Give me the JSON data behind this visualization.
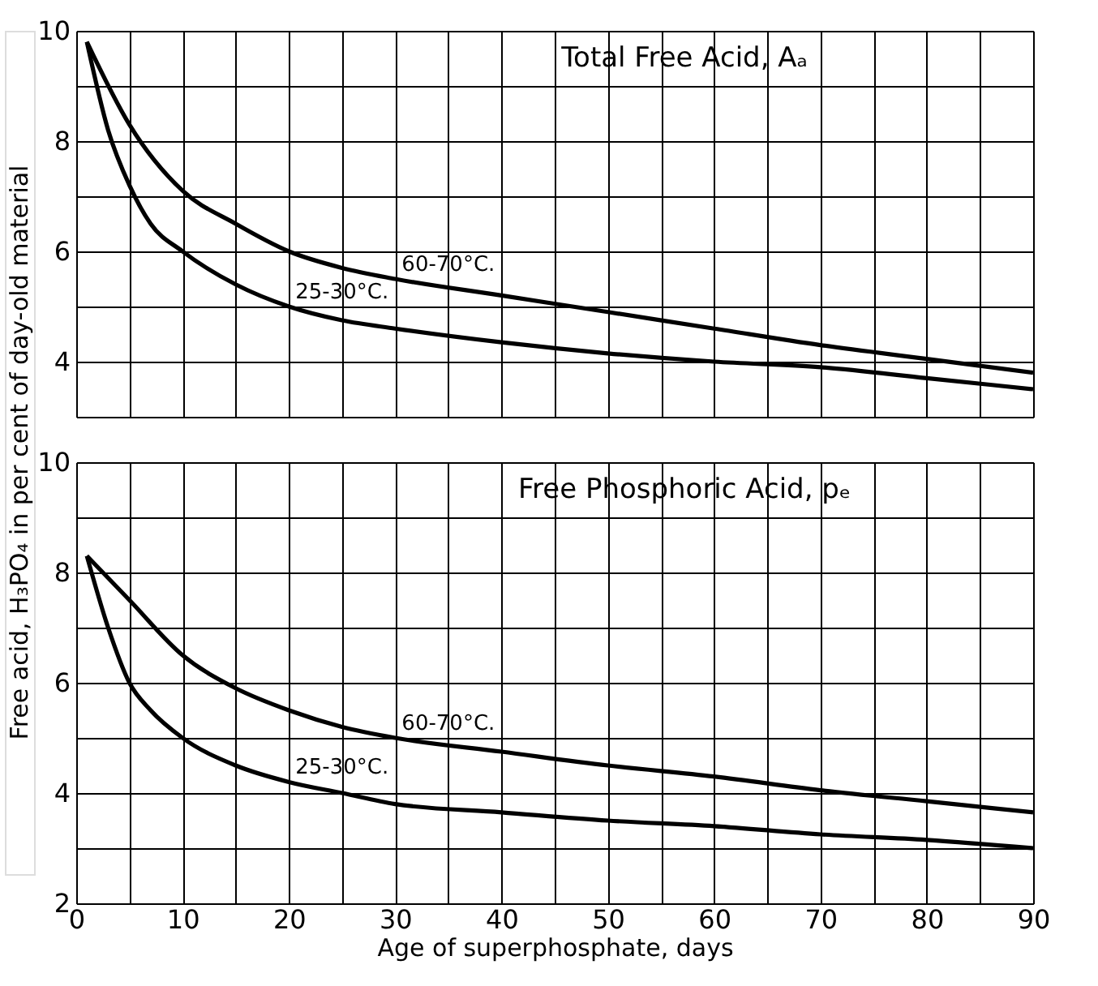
{
  "chart_data": [
    {
      "type": "line",
      "title": "Total Free Acid, Aₐ",
      "ylabel": "Free acid, H₃PO₄ in per cent of day-old material",
      "xlim": [
        0,
        90
      ],
      "xticks": [
        0,
        {
          "value": 5,
          "label": null
        },
        10,
        {
          "value": 15,
          "label": null
        },
        20,
        {
          "value": 25,
          "label": null
        },
        30,
        {
          "value": 35,
          "label": null
        },
        40,
        {
          "value": 45,
          "label": null
        },
        50,
        {
          "value": 55,
          "label": null
        },
        60,
        {
          "value": 65,
          "label": null
        },
        70,
        {
          "value": 75,
          "label": null
        },
        80,
        {
          "value": 85,
          "label": null
        },
        90
      ],
      "ylim": [
        3,
        10
      ],
      "yticks": [
        {
          "value": 3,
          "label": null
        },
        4,
        {
          "value": 5,
          "label": null
        },
        6,
        {
          "value": 7,
          "label": null
        },
        8,
        {
          "value": 9,
          "label": null
        },
        10
      ],
      "tick_labels": "y",
      "grid": true,
      "legend": false,
      "marker": "none",
      "line_style": "solid",
      "series": [
        {
          "name": "60-70°C.",
          "color": "#000000",
          "x": [
            1,
            5,
            10,
            15,
            20,
            25,
            30,
            40,
            50,
            60,
            70,
            80,
            90
          ],
          "values": [
            9.8,
            8.3,
            7.1,
            6.5,
            6.0,
            5.7,
            5.5,
            5.2,
            4.9,
            4.6,
            4.3,
            4.05,
            3.8
          ]
        },
        {
          "name": "25-30°C.",
          "color": "#000000",
          "x": [
            1,
            3,
            5,
            7,
            10,
            15,
            20,
            25,
            30,
            40,
            50,
            60,
            70,
            80,
            90
          ],
          "values": [
            9.8,
            8.2,
            7.2,
            6.5,
            6.0,
            5.4,
            5.0,
            4.75,
            4.6,
            4.35,
            4.15,
            4.0,
            3.9,
            3.7,
            3.5
          ]
        }
      ]
    },
    {
      "type": "line",
      "title": "Free Phosphoric Acid, pₑ",
      "xlabel": "Age of superphosphate, days",
      "xlim": [
        0,
        90
      ],
      "xticks": [
        0,
        {
          "value": 5,
          "label": null
        },
        10,
        {
          "value": 15,
          "label": null
        },
        20,
        {
          "value": 25,
          "label": null
        },
        30,
        {
          "value": 35,
          "label": null
        },
        40,
        {
          "value": 45,
          "label": null
        },
        50,
        {
          "value": 55,
          "label": null
        },
        60,
        {
          "value": 65,
          "label": null
        },
        70,
        {
          "value": 75,
          "label": null
        },
        80,
        {
          "value": 85,
          "label": null
        },
        90
      ],
      "ylim": [
        2,
        10
      ],
      "yticks": [
        2,
        {
          "value": 3,
          "label": null
        },
        4,
        {
          "value": 5,
          "label": null
        },
        6,
        {
          "value": 7,
          "label": null
        },
        8,
        {
          "value": 9,
          "label": null
        },
        10
      ],
      "grid": true,
      "legend": false,
      "marker": "none",
      "line_style": "solid",
      "series": [
        {
          "name": "60-70°C.",
          "color": "#000000",
          "x": [
            1,
            5,
            10,
            15,
            20,
            25,
            30,
            40,
            50,
            60,
            70,
            80,
            90
          ],
          "values": [
            8.3,
            7.5,
            6.5,
            5.9,
            5.5,
            5.2,
            5.0,
            4.75,
            4.5,
            4.3,
            4.05,
            3.85,
            3.65
          ]
        },
        {
          "name": "25-30°C.",
          "color": "#000000",
          "x": [
            1,
            3,
            5,
            7,
            10,
            15,
            20,
            25,
            30,
            40,
            50,
            60,
            70,
            80,
            90
          ],
          "values": [
            8.3,
            7.0,
            6.0,
            5.5,
            5.0,
            4.5,
            4.2,
            4.0,
            3.8,
            3.65,
            3.5,
            3.4,
            3.25,
            3.15,
            3.0
          ]
        }
      ]
    }
  ]
}
